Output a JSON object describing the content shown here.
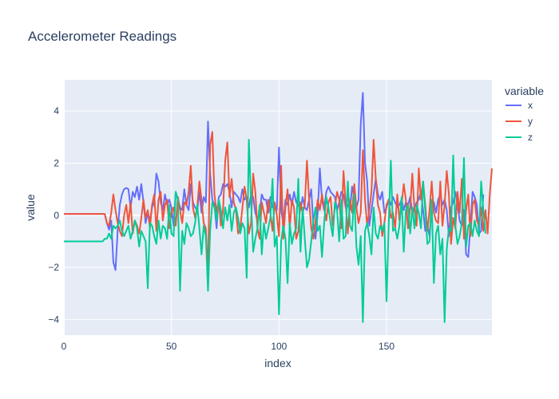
{
  "chart_data": {
    "type": "line",
    "title": "Accelerometer Readings",
    "xlabel": "index",
    "ylabel": "value",
    "xlim": [
      0,
      199
    ],
    "ylim": [
      -4.6,
      5.2
    ],
    "xticks": [
      0,
      50,
      100,
      150
    ],
    "yticks": [
      -4,
      -2,
      0,
      2,
      4
    ],
    "legend_title": "variable",
    "legend_position": "right",
    "series": [
      {
        "name": "x",
        "color": "#636efa",
        "values": [
          0.05,
          0.05,
          0.05,
          0.05,
          0.05,
          0.05,
          0.05,
          0.05,
          0.05,
          0.05,
          0.05,
          0.05,
          0.05,
          0.05,
          0.05,
          0.05,
          0.05,
          0.05,
          0.05,
          0.05,
          -0.3,
          -0.55,
          -0.2,
          -1.8,
          -2.1,
          -0.6,
          0.4,
          0.8,
          1.0,
          1.05,
          1.0,
          0.3,
          0.9,
          0.7,
          1.1,
          0.6,
          1.2,
          0.5,
          -0.3,
          0.1,
          -0.2,
          0.3,
          0.5,
          1.6,
          1.3,
          0.5,
          0.2,
          0.8,
          0.4,
          0.6,
          0.3,
          -0.4,
          0.9,
          0.6,
          0.3,
          0.2,
          1.0,
          0.4,
          0.2,
          1.2,
          0.5,
          0.3,
          0.2,
          0.9,
          0.1,
          0.7,
          0.5,
          3.6,
          1.6,
          0.6,
          0.4,
          -0.5,
          0.7,
          0.8,
          1.2,
          1.1,
          1.2,
          0.9,
          0.3,
          0.9,
          0.8,
          0.7,
          0.5,
          1.0,
          0.6,
          0.7,
          0.3,
          0.8,
          0.7,
          0.1,
          -0.2,
          0.1,
          0.8,
          0.6,
          0.6,
          0.1,
          0.7,
          0.3,
          0.3,
          0.2,
          2.6,
          0.2,
          -0.3,
          0.6,
          0.4,
          0.8,
          0.4,
          0.9,
          0.5,
          0.4,
          0.2,
          0.7,
          0.3,
          0.2,
          0.6,
          1.0,
          -0.4,
          -0.9,
          0.1,
          1.8,
          0.6,
          0.2,
          0.9,
          1.1,
          0.9,
          0.8,
          0.7,
          0.2,
          0.5,
          0.9,
          0.8,
          0.3,
          0.4,
          0.2,
          1.1,
          0.7,
          0.3,
          0.6,
          3.5,
          4.7,
          2.0,
          1.3,
          -0.4,
          0.2,
          0.8,
          1.4,
          0.8,
          0.6,
          0.9,
          0.1,
          0.3,
          0.6,
          0.4,
          0.7,
          0.5,
          0.3,
          0.4,
          0.6,
          0.2,
          0.5,
          0.4,
          0.7,
          0.1,
          0.3,
          0.5,
          0.6,
          0.9,
          0.2,
          -0.6,
          -0.4,
          -0.8,
          0.3,
          0.5,
          0.1,
          0.6,
          0.8,
          0.4,
          0.6,
          0.2,
          -0.8,
          0.3,
          0.5,
          0.9,
          0.4,
          -0.2,
          -0.4,
          0.2,
          -1.5,
          -1.6,
          -0.4,
          0.9,
          0.7,
          0.4,
          -0.7,
          -0.6,
          0.8
        ]
      },
      {
        "name": "y",
        "color": "#ef553b",
        "values": [
          0.05,
          0.05,
          0.05,
          0.05,
          0.05,
          0.05,
          0.05,
          0.05,
          0.05,
          0.05,
          0.05,
          0.05,
          0.05,
          0.05,
          0.05,
          0.05,
          0.05,
          0.05,
          0.05,
          0.05,
          -0.3,
          -0.4,
          0.1,
          0.8,
          0.2,
          -0.3,
          -0.6,
          -0.8,
          0.0,
          0.4,
          -0.3,
          0.5,
          -0.7,
          -0.2,
          -0.4,
          -0.7,
          -0.1,
          0.6,
          -0.1,
          0.2,
          -0.5,
          0.4,
          0.8,
          -0.6,
          0.6,
          0.9,
          -0.2,
          0.4,
          0.6,
          -0.5,
          0.1,
          0.3,
          -0.4,
          0.7,
          0.2,
          -0.3,
          0.5,
          0.4,
          0.9,
          1.9,
          0.3,
          -0.1,
          0.3,
          1.3,
          0.6,
          -0.3,
          -0.5,
          -2.3,
          2.7,
          3.2,
          0.8,
          0.1,
          0.6,
          -0.4,
          0.2,
          2.1,
          2.8,
          0.7,
          1.4,
          0.5,
          0.2,
          -0.7,
          -0.5,
          0.3,
          1.1,
          0.6,
          -0.7,
          -0.3,
          1.6,
          0.9,
          -0.5,
          -0.9,
          0.5,
          0.1,
          -0.3,
          0.6,
          0.1,
          -0.6,
          0.5,
          0.0,
          -0.8,
          1.9,
          -0.9,
          0.3,
          1.0,
          -0.5,
          0.6,
          0.3,
          -0.9,
          -0.6,
          0.5,
          0.1,
          0.4,
          2.1,
          0.6,
          -0.5,
          -0.9,
          -0.2,
          0.6,
          0.2,
          0.8,
          0.3,
          -0.2,
          0.5,
          0.7,
          -0.4,
          0.3,
          0.9,
          0.6,
          -0.5,
          1.7,
          0.5,
          -0.7,
          0.6,
          0.1,
          1.2,
          0.3,
          -0.3,
          0.1,
          2.5,
          0.6,
          -0.4,
          0.2,
          0.9,
          2.9,
          1.4,
          0.4,
          0.1,
          -0.8,
          -0.3,
          0.4,
          0.6,
          -0.1,
          0.1,
          -0.5,
          0.8,
          -0.2,
          0.4,
          1.2,
          0.6,
          -0.5,
          0.3,
          1.6,
          0.2,
          -0.4,
          1.8,
          0.6,
          1.3,
          0.4,
          -0.6,
          0.2,
          1.3,
          0.1,
          -0.2,
          -0.3,
          1.3,
          -0.4,
          0.4,
          1.7,
          0.8,
          -1.1,
          -0.1,
          -0.5,
          0.9,
          0.1,
          1.4,
          -0.9,
          0.2,
          0.8,
          -0.8,
          0.4,
          0.6,
          -0.2,
          -0.4,
          0.3,
          -0.6,
          0.2,
          -0.7,
          0.8,
          1.8
        ]
      },
      {
        "name": "z",
        "color": "#00cc96",
        "values": [
          -1.0,
          -1.0,
          -1.0,
          -1.0,
          -1.0,
          -1.0,
          -1.0,
          -1.0,
          -1.0,
          -1.0,
          -1.0,
          -1.0,
          -1.0,
          -1.0,
          -1.0,
          -1.0,
          -1.0,
          -1.0,
          -1.0,
          -0.9,
          -0.9,
          -0.7,
          -0.9,
          -0.4,
          -0.5,
          -0.4,
          -0.2,
          -0.6,
          -0.8,
          -0.6,
          -0.4,
          -0.9,
          -0.6,
          -0.2,
          -0.5,
          -1.2,
          -0.6,
          -0.8,
          -1.0,
          -2.8,
          -0.3,
          -0.4,
          -0.8,
          -1.1,
          -0.2,
          -0.9,
          -0.4,
          -0.5,
          -0.9,
          0.4,
          -0.7,
          -0.8,
          0.9,
          0.6,
          -2.9,
          -0.6,
          -1.1,
          -0.3,
          -0.5,
          -0.8,
          -0.7,
          -0.3,
          0.4,
          -0.5,
          -1.5,
          -0.4,
          -0.8,
          -2.9,
          -0.6,
          0.5,
          0.3,
          -0.2,
          0.6,
          0.2,
          -0.5,
          0.3,
          -0.2,
          0.4,
          -0.6,
          0.1,
          0.3,
          -0.1,
          -0.7,
          -0.3,
          -0.5,
          -2.4,
          2.9,
          0.6,
          -1.4,
          -0.9,
          -0.5,
          0.4,
          -1.5,
          -0.3,
          -0.9,
          -0.5,
          -0.1,
          1.4,
          -1.2,
          -0.8,
          -3.8,
          -1.0,
          -0.4,
          -0.9,
          -2.6,
          -0.3,
          -1.1,
          -0.7,
          -0.5,
          1.4,
          -1.4,
          0.3,
          -0.9,
          -2.0,
          -1.7,
          -1.0,
          -0.2,
          0.3,
          -0.6,
          -0.4,
          -1.6,
          -0.3,
          0.7,
          0.3,
          -0.3,
          -0.8,
          0.5,
          0.2,
          -1.0,
          0.6,
          -0.9,
          -0.8,
          1.3,
          -0.4,
          -0.6,
          0.8,
          -1.2,
          -1.9,
          -0.8,
          -4.1,
          -0.6,
          -0.3,
          -0.8,
          -1.5,
          0.3,
          -0.7,
          -0.9,
          -0.4,
          -0.6,
          -0.3,
          -3.3,
          -0.4,
          2.1,
          -0.6,
          -0.5,
          -0.9,
          -0.4,
          0.7,
          -1.4,
          0.2,
          0.4,
          -0.7,
          0.3,
          -0.5,
          0.4,
          0.1,
          -0.5,
          1.3,
          0.2,
          -1.1,
          -1.0,
          0.6,
          -2.6,
          -0.7,
          -0.4,
          -1.5,
          -0.9,
          -4.1,
          -1.3,
          -0.5,
          -0.6,
          2.3,
          -0.4,
          -1.1,
          -0.8,
          -0.3,
          2.2,
          -1.2,
          -0.4,
          -0.3,
          -0.8,
          -0.2,
          -0.6,
          -0.8,
          1.3,
          0.2,
          -0.7
        ]
      }
    ]
  }
}
